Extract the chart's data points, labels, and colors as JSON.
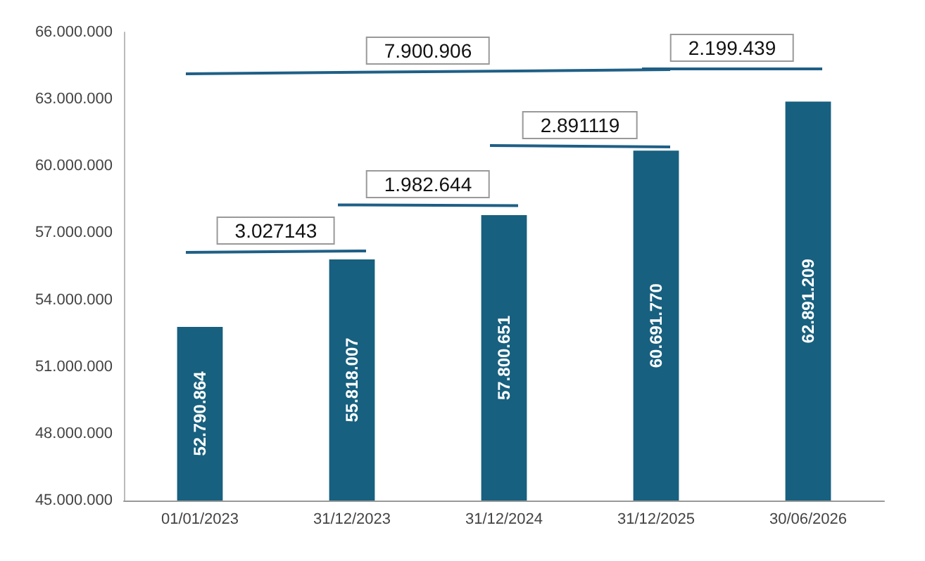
{
  "chart_data": {
    "type": "bar",
    "categories": [
      "01/01/2023",
      "31/12/2023",
      "31/12/2024",
      "31/12/2025",
      "30/06/2026"
    ],
    "values": [
      52790864,
      55818007,
      57800651,
      60691770,
      62891209
    ],
    "value_labels": [
      "52.790.864",
      "55.818.007",
      "57.800.651",
      "60.691.770",
      "62.891.209"
    ],
    "color": "#17607f",
    "ylim": [
      45000000,
      66000000
    ],
    "yticks": [
      {
        "value": 45000000,
        "label": "45.000.000"
      },
      {
        "value": 48000000,
        "label": "48.000.000"
      },
      {
        "value": 51000000,
        "label": "51.000.000"
      },
      {
        "value": 54000000,
        "label": "54.000.000"
      },
      {
        "value": 57000000,
        "label": "57.000.000"
      },
      {
        "value": 60000000,
        "label": "60.000.000"
      },
      {
        "value": 63000000,
        "label": "63.000.000"
      },
      {
        "value": 66000000,
        "label": "66.000.000"
      }
    ],
    "grid": false,
    "annotations": [
      "3.027143",
      "1.982.644",
      "2.891119",
      "7.900.906",
      "2.199.439"
    ]
  }
}
